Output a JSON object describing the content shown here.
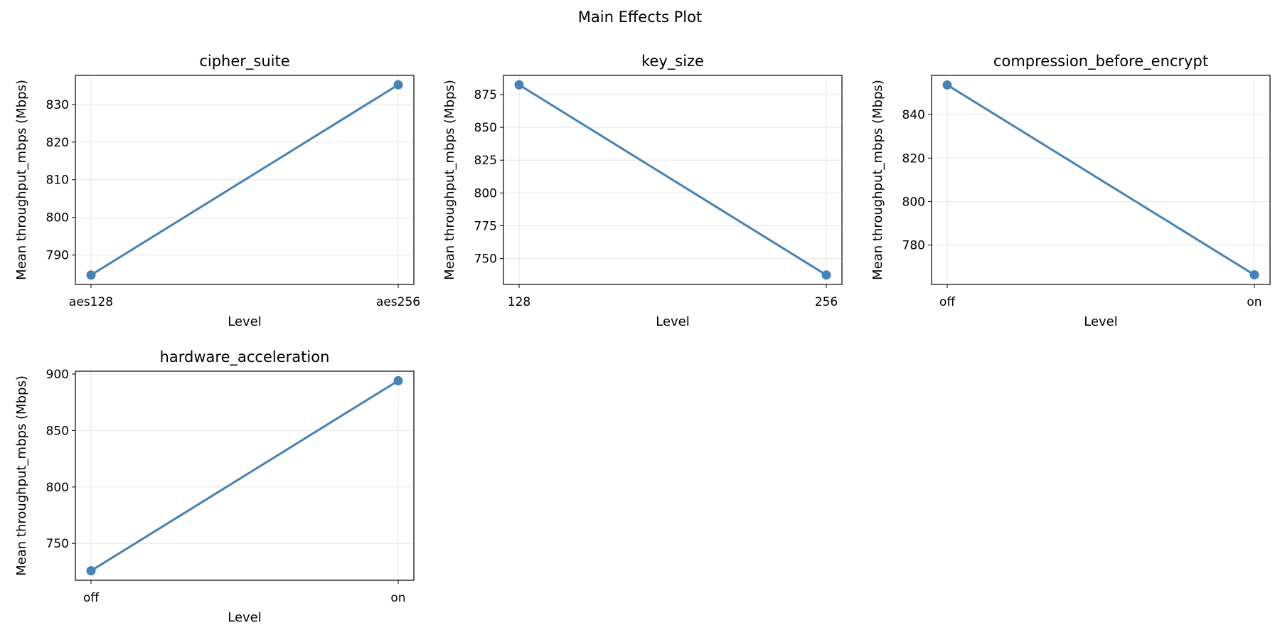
{
  "figure": {
    "title": "Main Effects Plot"
  },
  "chart_data": [
    {
      "type": "line",
      "title": "cipher_suite",
      "xlabel": "Level",
      "ylabel": "Mean throughput_mbps (Mbps)",
      "categories": [
        "aes128",
        "aes256"
      ],
      "values": [
        784.7,
        835.2
      ],
      "ylim": [
        782.2,
        837.7
      ],
      "yticks": [
        790,
        800,
        810,
        820,
        830
      ],
      "grid": true,
      "color": "#4682b4"
    },
    {
      "type": "line",
      "title": "key_size",
      "xlabel": "Level",
      "ylabel": "Mean throughput_mbps (Mbps)",
      "categories": [
        "128",
        "256"
      ],
      "values": [
        882.4,
        737.5
      ],
      "ylim": [
        730.3,
        889.6
      ],
      "yticks": [
        750,
        775,
        800,
        825,
        850,
        875
      ],
      "grid": true,
      "color": "#4682b4"
    },
    {
      "type": "line",
      "title": "compression_before_encrypt",
      "xlabel": "Level",
      "ylabel": "Mean throughput_mbps (Mbps)",
      "categories": [
        "off",
        "on"
      ],
      "values": [
        853.6,
        766.3
      ],
      "ylim": [
        761.9,
        858.0
      ],
      "yticks": [
        780,
        800,
        820,
        840
      ],
      "grid": true,
      "color": "#4682b4"
    },
    {
      "type": "line",
      "title": "hardware_acceleration",
      "xlabel": "Level",
      "ylabel": "Mean throughput_mbps (Mbps)",
      "categories": [
        "off",
        "on"
      ],
      "values": [
        725.8,
        894.1
      ],
      "ylim": [
        717.4,
        902.5
      ],
      "yticks": [
        750,
        800,
        850,
        900
      ],
      "grid": true,
      "color": "#4682b4"
    }
  ]
}
